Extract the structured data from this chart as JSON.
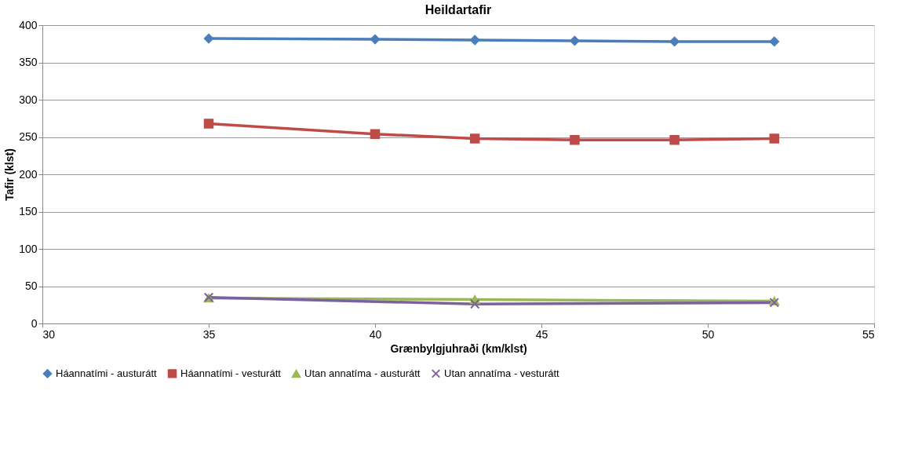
{
  "chart_data": {
    "type": "line",
    "title": "Heildartafir",
    "xlabel": "Grænbylgjuhraði (km/klst)",
    "ylabel": "Tafir (klst)",
    "xlim": [
      30,
      55
    ],
    "xticks": [
      30,
      35,
      40,
      45,
      50,
      55
    ],
    "ylim": [
      0,
      400
    ],
    "yticks": [
      0,
      50,
      100,
      150,
      200,
      250,
      300,
      350,
      400
    ],
    "grid": "y",
    "legend": "bottom",
    "line_style": "solid",
    "series": [
      {
        "name": "Háannatími - austurátt",
        "color": "#4a7ebb",
        "marker": "diamond",
        "x": [
          35,
          40,
          43,
          46,
          49,
          52
        ],
        "values": [
          382,
          381,
          380,
          379,
          378,
          378
        ]
      },
      {
        "name": "Háannatími - vesturátt",
        "color": "#be4b48",
        "marker": "square",
        "x": [
          35,
          40,
          43,
          46,
          49,
          52
        ],
        "values": [
          268,
          254,
          248,
          246,
          246,
          248
        ]
      },
      {
        "name": "Utan annatíma - austurátt",
        "color": "#98b954",
        "marker": "triangle",
        "x": [
          35,
          43,
          52
        ],
        "values": [
          34,
          32,
          30
        ]
      },
      {
        "name": "Utan annatíma - vesturátt",
        "color": "#7d60a0",
        "marker": "cross",
        "x": [
          35,
          43,
          52
        ],
        "values": [
          35,
          26,
          28
        ]
      }
    ]
  }
}
